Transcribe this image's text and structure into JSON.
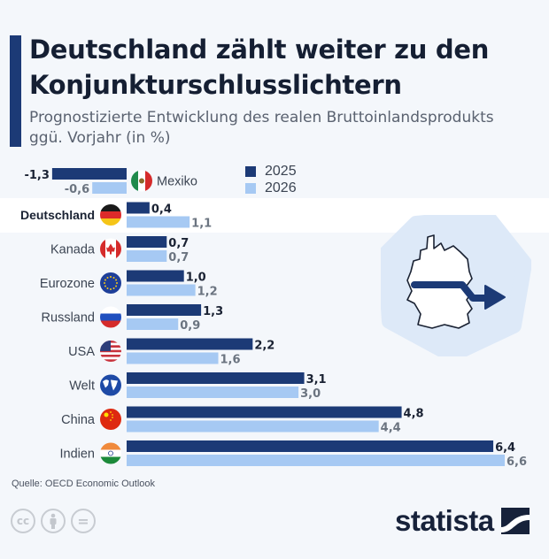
{
  "header": {
    "title": "Deutschland zählt weiter zu den Konjunkturschlusslichtern",
    "subtitle": "Prognostizierte Entwicklung des realen Bruttoinlandsprodukts ggü. Vorjahr (in %)"
  },
  "colors": {
    "series_2025": "#1c3a76",
    "series_2026": "#a6c9f3",
    "accent": "#1c3a76",
    "highlight_band": "#ffffff",
    "background": "#f4f7fb"
  },
  "legend": [
    {
      "label": "2025",
      "color": "#1c3a76"
    },
    {
      "label": "2026",
      "color": "#a6c9f3"
    }
  ],
  "chart_data": {
    "type": "bar",
    "orientation": "horizontal",
    "title": "Deutschland zählt weiter zu den Konjunkturschlusslichtern",
    "subtitle": "Prognostizierte Entwicklung des realen Bruttoinlandsprodukts ggü. Vorjahr (in %)",
    "xlabel": "",
    "ylabel": "",
    "xlim": [
      -1.3,
      6.6
    ],
    "grid": false,
    "legend_position": "top-center",
    "highlighted_category": "Deutschland",
    "categories": [
      "Mexiko",
      "Deutschland",
      "Kanada",
      "Eurozone",
      "Russland",
      "USA",
      "Welt",
      "China",
      "Indien"
    ],
    "category_icons": [
      "flag-mexico",
      "flag-germany",
      "flag-canada",
      "flag-eu",
      "flag-russia",
      "flag-usa",
      "globe",
      "flag-china",
      "flag-india"
    ],
    "series": [
      {
        "name": "2025",
        "values": [
          -1.3,
          0.4,
          0.7,
          1.0,
          1.3,
          2.2,
          3.1,
          4.8,
          6.4
        ],
        "labels": [
          "-1,3",
          "0,4",
          "0,7",
          "1,0",
          "1,3",
          "2,2",
          "3,1",
          "4,8",
          "6,4"
        ]
      },
      {
        "name": "2026",
        "values": [
          -0.6,
          1.1,
          0.7,
          1.2,
          0.9,
          1.6,
          3.0,
          4.4,
          6.6
        ],
        "labels": [
          "-0,6",
          "1,1",
          "0,7",
          "1,2",
          "0,9",
          "1,6",
          "3,0",
          "4,4",
          "6,6"
        ]
      }
    ]
  },
  "footer": {
    "source": "Quelle: OECD Economic Outlook",
    "license_icons": [
      "cc",
      "by",
      "nd"
    ],
    "cc_label": "cc",
    "nd_label": "=",
    "brand": "statista"
  }
}
